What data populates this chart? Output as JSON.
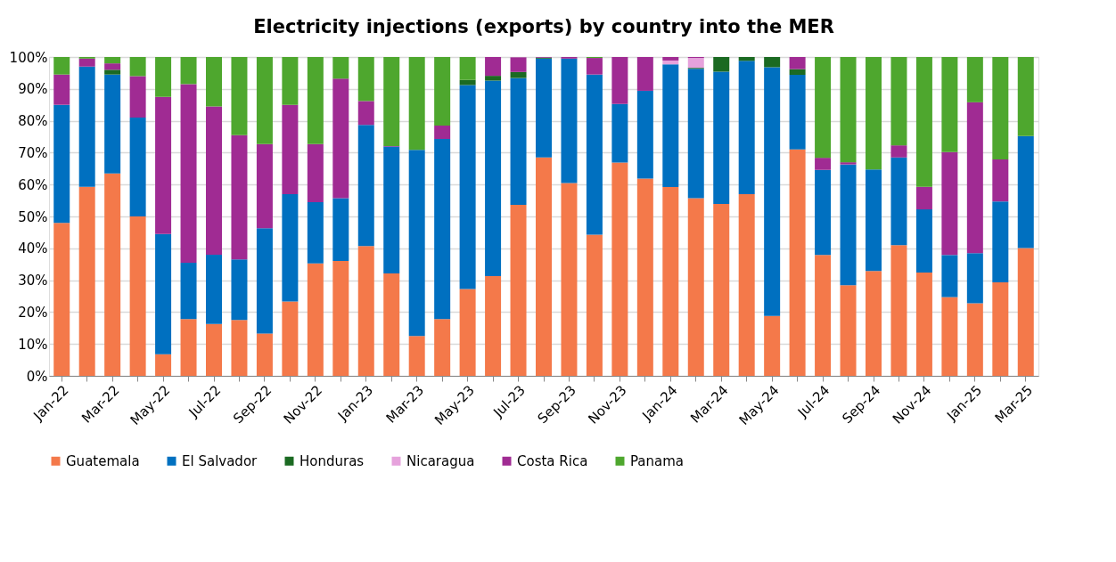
{
  "chart_data": {
    "type": "bar",
    "stacked": true,
    "title": "Electricity injections (exports) by country into the MER",
    "categories": [
      "Jan-22",
      null,
      "Mar-22",
      null,
      "May-22",
      null,
      "Jul-22",
      null,
      "Sep-22",
      null,
      "Nov-22",
      null,
      "Jan-23",
      null,
      "Mar-23",
      null,
      "May-23",
      null,
      "Jul-23",
      null,
      "Sep-23",
      null,
      "Nov-23",
      null,
      "Jan-24",
      null,
      "Mar-24",
      null,
      "May-24",
      null,
      "Jul-24",
      null,
      "Sep-24",
      null,
      "Nov-24",
      null,
      "Jan-25",
      null,
      "Mar-25"
    ],
    "series": [
      {
        "name": "Guatemala",
        "color": "#f4794a",
        "values": [
          48,
          59.3,
          63.5,
          50,
          6.8,
          17.8,
          16.3,
          17.5,
          13.3,
          23.3,
          35.3,
          36,
          40.7,
          32.1,
          12.5,
          17.8,
          27.2,
          31.3,
          53.6,
          68.5,
          60.5,
          44.3,
          66.9,
          61.9,
          59.2,
          55.7,
          53.9,
          57,
          18.8,
          71,
          37.9,
          28.4,
          32.9,
          41,
          32.4,
          24.7,
          22.8,
          29.3,
          40.1
        ]
      },
      {
        "name": "El Salvador",
        "color": "#0070c0",
        "values": [
          37,
          37.7,
          31,
          31,
          37.7,
          17.7,
          21.7,
          19,
          33,
          33.7,
          19.2,
          19.7,
          38,
          39.8,
          58.4,
          56.5,
          64,
          61.3,
          39.8,
          31,
          39,
          50.2,
          18.4,
          27.5,
          38.5,
          40.6,
          41.5,
          41.8,
          78,
          23.4,
          26.7,
          37.9,
          31.8,
          27.5,
          19.8,
          13.2,
          15.7,
          25.4,
          35.1
        ]
      },
      {
        "name": "Honduras",
        "color": "#1b6a22",
        "values": [
          0,
          0,
          1.5,
          0,
          0,
          0,
          0,
          0,
          0,
          0,
          0,
          0,
          0,
          0,
          0,
          0,
          1.6,
          1.5,
          1.9,
          0.3,
          0,
          0,
          0,
          0,
          0,
          0.3,
          4.6,
          1.2,
          3.2,
          1.8,
          0,
          0,
          0,
          0,
          0,
          0,
          0,
          0,
          0
        ]
      },
      {
        "name": "Nicaragua",
        "color": "#e6a2dc",
        "values": [
          0,
          0,
          0,
          0,
          0,
          0,
          0,
          0,
          0,
          0,
          0,
          0,
          0,
          0,
          0,
          0,
          0,
          0,
          0,
          0,
          0,
          0,
          0,
          0,
          1.2,
          3.1,
          0,
          0,
          0,
          0,
          0,
          0,
          0,
          0,
          0,
          0,
          0,
          0,
          0
        ]
      },
      {
        "name": "Costa Rica",
        "color": "#a02b93",
        "values": [
          9.5,
          2.5,
          2,
          13,
          43,
          56,
          46.5,
          39,
          26.4,
          28,
          18.2,
          37.5,
          7.5,
          0.2,
          0,
          4.2,
          0,
          5.9,
          4.6,
          0.2,
          0.5,
          5.2,
          14.7,
          10.6,
          1.1,
          0.3,
          0,
          0,
          0,
          3.8,
          3.8,
          0.7,
          0,
          3.8,
          7.1,
          32.3,
          47.3,
          13.2,
          0
        ]
      },
      {
        "name": "Panama",
        "color": "#4ea72e",
        "values": [
          5.5,
          0.5,
          2,
          6,
          12.5,
          8.5,
          15.5,
          24.5,
          27.3,
          15,
          27.3,
          6.8,
          13.8,
          27.9,
          29.1,
          21.5,
          7.2,
          0,
          0,
          0,
          0,
          0.3,
          0,
          0,
          0,
          0,
          0,
          0,
          0,
          0,
          31.6,
          33,
          35.3,
          27.7,
          40.7,
          29.8,
          14.2,
          32.1,
          24.8
        ]
      }
    ],
    "ylim": [
      0,
      100
    ],
    "yticks": [
      {
        "value": 0,
        "label": "0%"
      },
      {
        "value": 10,
        "label": "10%"
      },
      {
        "value": 20,
        "label": "20%"
      },
      {
        "value": 30,
        "label": "30%"
      },
      {
        "value": 40,
        "label": "40%"
      },
      {
        "value": 50,
        "label": "50%"
      },
      {
        "value": 60,
        "label": "60%"
      },
      {
        "value": 70,
        "label": "70%"
      },
      {
        "value": 80,
        "label": "80%"
      },
      {
        "value": 90,
        "label": "90%"
      },
      {
        "value": 100,
        "label": "100%"
      }
    ],
    "grid": "y",
    "legend": "bottom"
  }
}
